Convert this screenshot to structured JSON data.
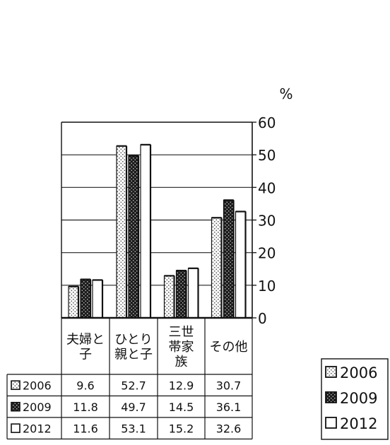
{
  "chart_data": {
    "type": "bar",
    "unit_label": "%",
    "categories": [
      [
        "夫婦と",
        "子"
      ],
      [
        "ひとり",
        "親と子"
      ],
      [
        "三世",
        "帯家",
        "族"
      ],
      [
        "その他"
      ]
    ],
    "series": [
      {
        "name": "2006",
        "values": [
          9.6,
          52.7,
          12.9,
          30.7
        ]
      },
      {
        "name": "2009",
        "values": [
          11.8,
          49.7,
          14.5,
          36.1
        ]
      },
      {
        "name": "2012",
        "values": [
          11.6,
          53.1,
          15.2,
          32.6
        ]
      }
    ],
    "yticks": [
      "0",
      "10",
      "20",
      "30",
      "40",
      "50",
      "60"
    ],
    "ylim": [
      0,
      60
    ],
    "y_axis_side": "right",
    "grid": true,
    "legend_position": "bottom-right",
    "data_table": true,
    "patterns": [
      "light-dotted",
      "dark-checker",
      "white"
    ]
  }
}
